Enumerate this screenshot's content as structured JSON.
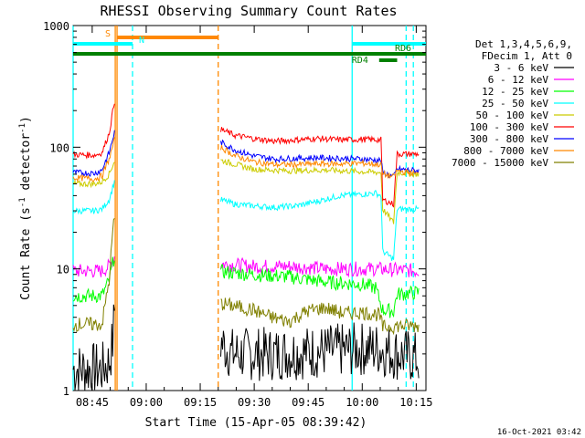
{
  "chart_data": {
    "type": "line",
    "title": "RHESSI Observing Summary Count Rates",
    "xlabel": "Start Time (15-Apr-05 08:39:42)",
    "ylabel_main": "Count Rate (s",
    "ylabel_sup1": "-1",
    "ylabel_mid": " detector",
    "ylabel_sup2": "-1",
    "ylabel_end": ")",
    "yscale": "log",
    "ylim": [
      1,
      1000
    ],
    "xlim_minutes": [
      0,
      98
    ],
    "x_ticks": [
      {
        "minute": 5.3,
        "label": "08:45"
      },
      {
        "minute": 20.3,
        "label": "09:00"
      },
      {
        "minute": 35.3,
        "label": "09:15"
      },
      {
        "minute": 50.3,
        "label": "09:30"
      },
      {
        "minute": 65.3,
        "label": "09:45"
      },
      {
        "minute": 80.3,
        "label": "10:00"
      },
      {
        "minute": 95.3,
        "label": "10:15"
      }
    ],
    "y_ticks": [
      {
        "value": 1,
        "label": "1"
      },
      {
        "value": 10,
        "label": "10"
      },
      {
        "value": 100,
        "label": "100"
      },
      {
        "value": 1000,
        "label": "1000"
      }
    ],
    "legend_header": [
      "Det 1,3,4,5,6,9,",
      "FDecim 1, Att 0"
    ],
    "legend_position": "right",
    "series": [
      {
        "name": "3 - 6 keV",
        "color": "#000000",
        "points": [
          [
            0,
            1.5
          ],
          [
            8,
            1.5
          ],
          [
            10,
            1.7
          ],
          [
            11,
            2.5
          ],
          [
            11.7,
            6
          ]
        ],
        "gap_after": [
          [
            41,
            2.5
          ],
          [
            44,
            2.0
          ],
          [
            55,
            2.0
          ],
          [
            70,
            2.1
          ],
          [
            80,
            2.2
          ],
          [
            85,
            2.2
          ],
          [
            90,
            2.0
          ],
          [
            94,
            1.9
          ],
          [
            96,
            1.8
          ]
        ]
      },
      {
        "name": "6 - 12 keV",
        "color": "#ff00ff",
        "points": [
          [
            0,
            9.6
          ],
          [
            8,
            9.6
          ],
          [
            10,
            10.5
          ],
          [
            11,
            12
          ],
          [
            11.7,
            13
          ]
        ],
        "gap_after": [
          [
            41,
            11
          ],
          [
            50,
            10.5
          ],
          [
            60,
            10.5
          ],
          [
            70,
            10
          ],
          [
            80,
            10
          ],
          [
            84,
            10
          ],
          [
            90,
            9.8
          ],
          [
            96,
            9.6
          ]
        ]
      },
      {
        "name": "12 - 25 keV",
        "color": "#00ff00",
        "points": [
          [
            0,
            6.0
          ],
          [
            8,
            6.0
          ],
          [
            10,
            8
          ],
          [
            11,
            11
          ],
          [
            11.7,
            14
          ]
        ],
        "gap_after": [
          [
            41,
            9.5
          ],
          [
            50,
            9.0
          ],
          [
            60,
            8.6
          ],
          [
            70,
            7.8
          ],
          [
            80,
            7.5
          ],
          [
            84,
            7.0
          ],
          [
            86,
            4.6
          ],
          [
            89,
            4.5
          ],
          [
            90,
            6.2
          ],
          [
            96,
            6.4
          ]
        ]
      },
      {
        "name": "25 - 50 keV",
        "color": "#00ffff",
        "points": [
          [
            0,
            30
          ],
          [
            6,
            30
          ],
          [
            8,
            31
          ],
          [
            10,
            37
          ],
          [
            11.7,
            55
          ]
        ],
        "gap_after": [
          [
            41,
            37
          ],
          [
            45,
            34
          ],
          [
            50,
            33
          ],
          [
            56,
            32
          ],
          [
            62,
            33
          ],
          [
            68,
            36
          ],
          [
            74,
            40
          ],
          [
            80,
            41
          ],
          [
            84,
            42
          ],
          [
            85.5,
            40
          ],
          [
            86,
            14
          ],
          [
            89,
            12
          ],
          [
            90,
            31
          ],
          [
            96,
            31
          ]
        ]
      },
      {
        "name": "50 - 100 keV",
        "color": "#cccc00",
        "points": [
          [
            0,
            50
          ],
          [
            6,
            50
          ],
          [
            8,
            52
          ],
          [
            10,
            60
          ],
          [
            11.7,
            80
          ]
        ],
        "gap_after": [
          [
            41,
            78
          ],
          [
            50,
            66
          ],
          [
            60,
            64
          ],
          [
            70,
            65
          ],
          [
            80,
            63
          ],
          [
            85.5,
            62
          ],
          [
            86,
            31
          ],
          [
            89,
            24
          ],
          [
            90,
            62
          ],
          [
            96,
            60
          ]
        ]
      },
      {
        "name": "100 - 300 keV",
        "color": "#ff0000",
        "points": [
          [
            0,
            87
          ],
          [
            6,
            86
          ],
          [
            8,
            90
          ],
          [
            10,
            130
          ],
          [
            11.7,
            260
          ]
        ],
        "gap_after": [
          [
            41,
            140
          ],
          [
            45,
            125
          ],
          [
            50,
            118
          ],
          [
            56,
            112
          ],
          [
            62,
            115
          ],
          [
            68,
            118
          ],
          [
            74,
            115
          ],
          [
            80,
            116
          ],
          [
            85.5,
            115
          ],
          [
            86,
            37
          ],
          [
            89,
            34
          ],
          [
            90,
            88
          ],
          [
            96,
            88
          ]
        ]
      },
      {
        "name": "300 - 800 keV",
        "color": "#0000ff",
        "points": [
          [
            0,
            62
          ],
          [
            6,
            61
          ],
          [
            8,
            65
          ],
          [
            10,
            90
          ],
          [
            11.7,
            140
          ]
        ],
        "gap_after": [
          [
            41,
            110
          ],
          [
            45,
            95
          ],
          [
            50,
            85
          ],
          [
            56,
            80
          ],
          [
            62,
            81
          ],
          [
            68,
            82
          ],
          [
            74,
            81
          ],
          [
            80,
            80
          ],
          [
            85.5,
            78
          ],
          [
            86,
            62
          ],
          [
            89,
            57
          ],
          [
            90,
            66
          ],
          [
            96,
            64
          ]
        ]
      },
      {
        "name": "800 - 7000 keV",
        "color": "#ff8800",
        "points": [
          [
            0,
            56
          ],
          [
            6,
            55
          ],
          [
            8,
            58
          ],
          [
            10,
            80
          ],
          [
            11.7,
            120
          ]
        ],
        "gap_after": [
          [
            41,
            100
          ],
          [
            45,
            85
          ],
          [
            50,
            76
          ],
          [
            56,
            72
          ],
          [
            62,
            72
          ],
          [
            68,
            73
          ],
          [
            74,
            73
          ],
          [
            80,
            74
          ],
          [
            85.5,
            72
          ],
          [
            86,
            60
          ],
          [
            89,
            57
          ],
          [
            90,
            64
          ],
          [
            96,
            60
          ]
        ]
      },
      {
        "name": "7000 - 15000 keV",
        "color": "#808000",
        "points": [
          [
            0,
            3.5
          ],
          [
            8,
            3.5
          ],
          [
            10,
            8
          ],
          [
            11,
            20
          ],
          [
            11.7,
            30
          ]
        ],
        "gap_after": [
          [
            41,
            5.2
          ],
          [
            50,
            4.6
          ],
          [
            55,
            4.0
          ],
          [
            60,
            3.7
          ],
          [
            65,
            4.5
          ],
          [
            70,
            4.8
          ],
          [
            75,
            4.3
          ],
          [
            80,
            4.4
          ],
          [
            85,
            4.2
          ],
          [
            86,
            3.3
          ],
          [
            90,
            3.4
          ],
          [
            96,
            3.4
          ]
        ]
      }
    ],
    "vlines": [
      {
        "minute": 0,
        "color": "#00ffff",
        "style": "solid"
      },
      {
        "minute": 11.7,
        "color": "#ff8800",
        "style": "solid"
      },
      {
        "minute": 12.2,
        "color": "#ff8800",
        "style": "solid"
      },
      {
        "minute": 16.5,
        "color": "#00ffff",
        "style": "dashed"
      },
      {
        "minute": 40.3,
        "color": "#ff8800",
        "style": "dashed"
      },
      {
        "minute": 77.5,
        "color": "#00ffff",
        "style": "solid"
      },
      {
        "minute": 92.5,
        "color": "#00ffff",
        "style": "dashed"
      },
      {
        "minute": 94.5,
        "color": "#00ffff",
        "style": "dashed"
      }
    ],
    "flags": [
      {
        "label": "S",
        "color": "#ff8800",
        "start": 12.2,
        "end": 40.3,
        "row": 1
      },
      {
        "label": "N",
        "color": "#00ffff",
        "start": 0,
        "end": 16.5,
        "row": 2
      },
      {
        "label": "",
        "color": "#00ffff",
        "start": 77.5,
        "end": 98,
        "row": 2
      },
      {
        "label": "RD6",
        "color": "#008000",
        "start": 0,
        "end": 98,
        "row": 3
      },
      {
        "label": "RD4",
        "color": "#008000",
        "start": 85,
        "end": 90,
        "row": 4
      }
    ]
  },
  "timestamp": "16-Oct-2021 03:42"
}
